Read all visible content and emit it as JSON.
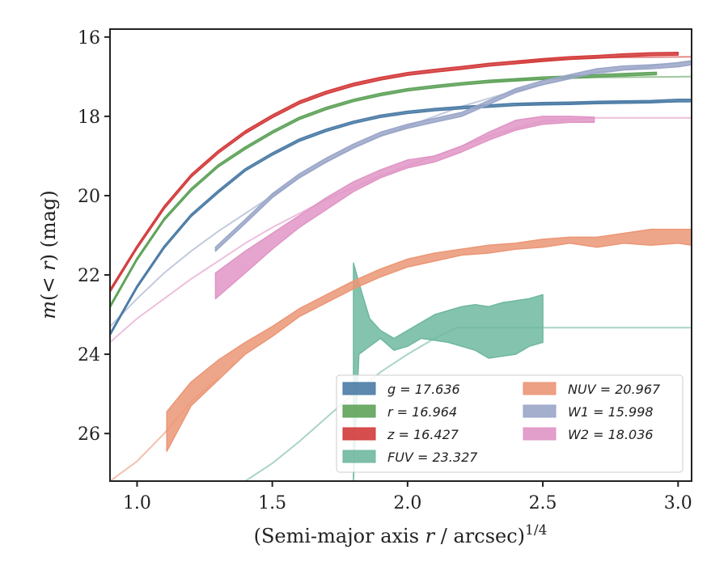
{
  "chart_data": {
    "type": "line",
    "xlabel": "(Semi-major axis r / arcsec)",
    "xlabel_superscript": "1/4",
    "ylabel": "m(< r) (mag)",
    "xlim": [
      0.9,
      3.05
    ],
    "ylim": [
      27.2,
      15.8
    ],
    "y_inverted": true,
    "x_ticks": [
      1.0,
      1.5,
      2.0,
      2.5,
      3.0
    ],
    "x_tick_labels": [
      "1.0",
      "1.5",
      "2.0",
      "2.5",
      "3.0"
    ],
    "y_ticks": [
      16,
      18,
      20,
      22,
      24,
      26
    ],
    "y_tick_labels": [
      "16",
      "18",
      "20",
      "22",
      "24",
      "26"
    ],
    "grid": false,
    "legend_position": "lower-right",
    "series": [
      {
        "name": "g",
        "legend": "g = 17.636",
        "color": "#4c7ca6",
        "observed": {
          "x": [
            0.9,
            1.0,
            1.1,
            1.2,
            1.3,
            1.4,
            1.5,
            1.6,
            1.7,
            1.8,
            1.9,
            2.0,
            2.1,
            2.2,
            2.3,
            2.4,
            2.5,
            2.6,
            2.7,
            2.8,
            2.9,
            3.0,
            3.05
          ],
          "y": [
            23.5,
            22.3,
            21.3,
            20.5,
            19.9,
            19.35,
            18.95,
            18.6,
            18.35,
            18.15,
            18.0,
            17.9,
            17.83,
            17.78,
            17.74,
            17.7,
            17.68,
            17.67,
            17.65,
            17.64,
            17.63,
            17.6,
            17.6
          ],
          "band_width": 0.06
        },
        "model": {
          "x": [
            2.4,
            2.7,
            3.05
          ],
          "y": [
            17.7,
            17.65,
            17.63
          ]
        }
      },
      {
        "name": "r",
        "legend": "r = 16.964",
        "color": "#5fa35a",
        "observed": {
          "x": [
            0.9,
            1.0,
            1.1,
            1.2,
            1.3,
            1.4,
            1.5,
            1.6,
            1.7,
            1.8,
            1.9,
            2.0,
            2.1,
            2.2,
            2.3,
            2.4,
            2.5,
            2.6,
            2.7,
            2.8,
            2.92
          ],
          "y": [
            22.8,
            21.6,
            20.6,
            19.85,
            19.25,
            18.8,
            18.4,
            18.05,
            17.8,
            17.6,
            17.45,
            17.33,
            17.25,
            17.18,
            17.12,
            17.08,
            17.04,
            17.01,
            16.98,
            16.95,
            16.92
          ],
          "band_width": 0.06
        },
        "model": {
          "x": [
            2.3,
            2.7,
            3.05
          ],
          "y": [
            17.1,
            17.02,
            17.0
          ]
        }
      },
      {
        "name": "z",
        "legend": "z = 16.427",
        "color": "#d33b3b",
        "observed": {
          "x": [
            0.9,
            1.0,
            1.1,
            1.2,
            1.3,
            1.4,
            1.5,
            1.6,
            1.7,
            1.8,
            1.9,
            2.0,
            2.1,
            2.2,
            2.3,
            2.4,
            2.5,
            2.6,
            2.7,
            2.8,
            2.9,
            3.0
          ],
          "y": [
            22.4,
            21.3,
            20.3,
            19.5,
            18.9,
            18.4,
            18.0,
            17.65,
            17.4,
            17.2,
            17.05,
            16.93,
            16.85,
            16.78,
            16.7,
            16.64,
            16.58,
            16.53,
            16.5,
            16.46,
            16.43,
            16.42
          ],
          "band_width": 0.07
        },
        "model": {
          "x": [
            2.4,
            2.7,
            3.05
          ],
          "y": [
            16.62,
            16.52,
            16.5
          ]
        }
      },
      {
        "name": "FUV",
        "legend": "FUV = 23.327",
        "color": "#6fb8a0",
        "observed": {
          "x": [
            1.8,
            1.82,
            1.86,
            1.9,
            1.95,
            2.0,
            2.05,
            2.1,
            2.15,
            2.2,
            2.25,
            2.3,
            2.35,
            2.4,
            2.45,
            2.5
          ],
          "y_upper": [
            21.7,
            22.2,
            23.1,
            23.4,
            23.6,
            23.4,
            23.2,
            23.0,
            22.9,
            22.8,
            22.75,
            22.8,
            22.7,
            22.65,
            22.6,
            22.5
          ],
          "y_lower": [
            27.2,
            24.0,
            23.8,
            23.6,
            23.9,
            23.8,
            23.6,
            23.65,
            23.7,
            23.8,
            23.9,
            24.1,
            24.05,
            24.0,
            23.8,
            23.7
          ]
        },
        "model": {
          "x": [
            1.4,
            1.5,
            1.6,
            1.7,
            1.8,
            1.9,
            2.0,
            2.1,
            2.18,
            2.3,
            2.5,
            2.7,
            3.05
          ],
          "y": [
            27.2,
            26.75,
            26.2,
            25.6,
            25.0,
            24.45,
            24.0,
            23.6,
            23.33,
            23.33,
            23.33,
            23.33,
            23.33
          ]
        }
      },
      {
        "name": "NUV",
        "legend": "NUV = 20.967",
        "color": "#eb9675",
        "observed": {
          "x": [
            1.11,
            1.2,
            1.3,
            1.4,
            1.5,
            1.6,
            1.7,
            1.8,
            1.9,
            2.0,
            2.1,
            2.2,
            2.3,
            2.4,
            2.5,
            2.6,
            2.7,
            2.8,
            2.9,
            3.0,
            3.05
          ],
          "y_upper": [
            25.45,
            24.7,
            24.15,
            23.7,
            23.3,
            22.85,
            22.5,
            22.15,
            21.85,
            21.6,
            21.45,
            21.35,
            21.25,
            21.2,
            21.1,
            21.05,
            21.05,
            20.95,
            20.85,
            20.85,
            20.85
          ],
          "y_lower": [
            26.45,
            25.3,
            24.65,
            24.0,
            23.55,
            23.05,
            22.7,
            22.35,
            22.05,
            21.8,
            21.65,
            21.5,
            21.45,
            21.35,
            21.3,
            21.2,
            21.3,
            21.2,
            21.25,
            21.2,
            21.25
          ]
        },
        "model": {
          "x": [
            0.9,
            1.0,
            1.1,
            1.2,
            1.3
          ],
          "y": [
            27.2,
            26.7,
            26.0,
            25.2,
            24.6
          ]
        }
      },
      {
        "name": "W1",
        "legend": "W1 = 15.998",
        "color": "#9aa6c8",
        "observed": {
          "x": [
            1.29,
            1.4,
            1.5,
            1.6,
            1.7,
            1.8,
            1.9,
            2.0,
            2.1,
            2.2,
            2.3,
            2.4,
            2.5,
            2.6,
            2.7,
            2.8,
            2.9,
            3.0,
            3.05
          ],
          "y": [
            21.35,
            20.65,
            20.0,
            19.5,
            19.1,
            18.75,
            18.45,
            18.25,
            18.1,
            17.95,
            17.65,
            17.35,
            17.15,
            17.0,
            16.85,
            16.78,
            16.75,
            16.7,
            16.65
          ],
          "band_width": 0.1
        },
        "model": {
          "x": [
            0.9,
            1.0,
            1.1,
            1.2,
            1.3,
            1.4,
            1.5,
            1.6,
            1.7,
            1.8,
            1.9,
            2.0,
            2.1,
            2.2,
            2.4,
            2.6,
            2.8,
            3.05
          ],
          "y": [
            23.3,
            22.6,
            21.95,
            21.4,
            20.9,
            20.45,
            20.0,
            19.55,
            19.15,
            18.8,
            18.5,
            18.25,
            18.0,
            17.75,
            17.35,
            17.05,
            16.82,
            16.6
          ]
        }
      },
      {
        "name": "W2",
        "legend": "W2 = 18.036",
        "color": "#e095c6",
        "observed": {
          "x": [
            1.29,
            1.4,
            1.5,
            1.6,
            1.7,
            1.8,
            1.9,
            2.0,
            2.1,
            2.2,
            2.3,
            2.4,
            2.5,
            2.6,
            2.69
          ],
          "y_upper": [
            21.95,
            21.4,
            20.95,
            20.5,
            20.05,
            19.65,
            19.35,
            19.1,
            19.0,
            18.75,
            18.4,
            18.1,
            18.0,
            18.0,
            18.02
          ],
          "y_lower": [
            22.6,
            21.95,
            21.35,
            20.8,
            20.35,
            19.9,
            19.55,
            19.3,
            19.15,
            18.9,
            18.6,
            18.35,
            18.2,
            18.15,
            18.15
          ]
        },
        "model": {
          "x": [
            0.9,
            1.0,
            1.1,
            1.2,
            1.3,
            1.4,
            1.5,
            1.6,
            1.7,
            1.8,
            1.9,
            2.0,
            2.1,
            2.2,
            2.3,
            2.4,
            2.5,
            2.7,
            3.05
          ],
          "y": [
            23.7,
            23.1,
            22.6,
            22.1,
            21.65,
            21.2,
            20.8,
            20.45,
            20.1,
            19.8,
            19.5,
            19.25,
            19.0,
            18.75,
            18.5,
            18.3,
            18.12,
            18.04,
            18.04
          ]
        }
      }
    ]
  }
}
